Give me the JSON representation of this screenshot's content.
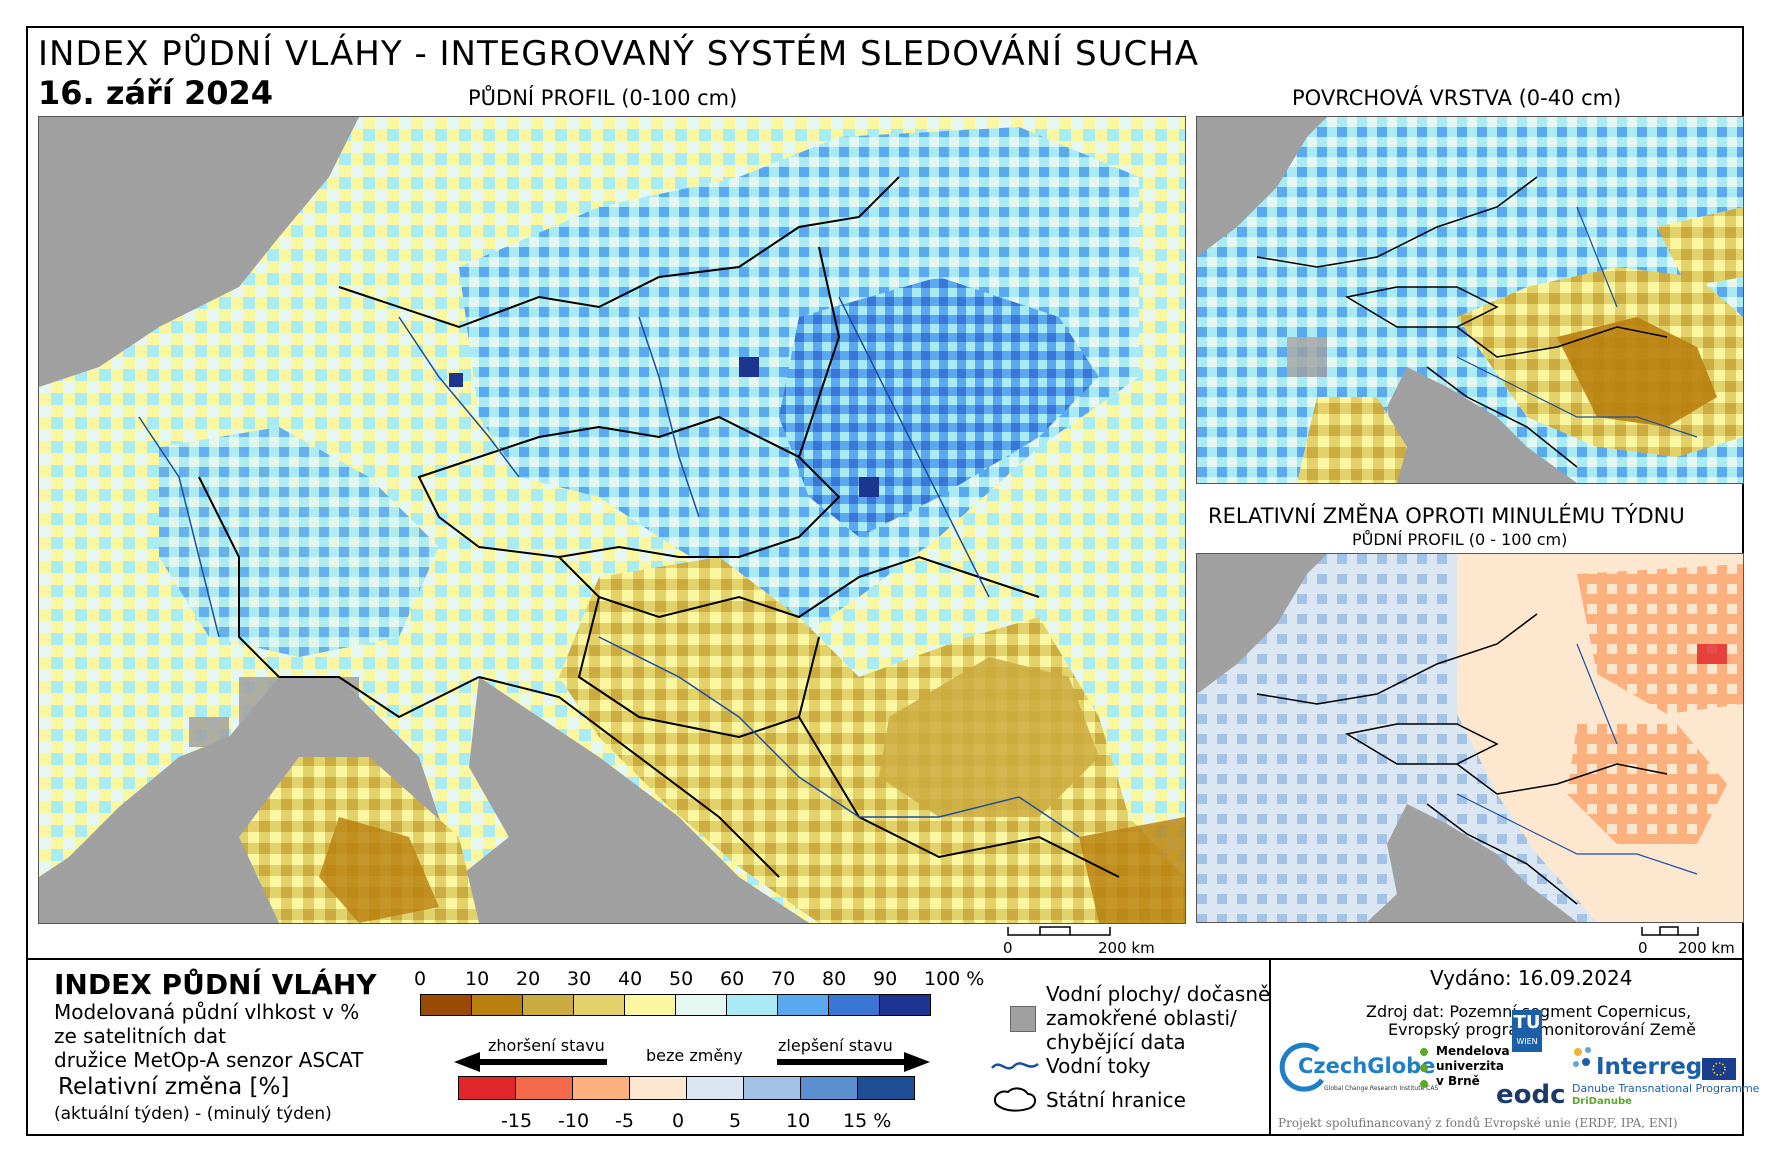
{
  "header": {
    "title": "INDEX PŮDNÍ VLÁHY - INTEGROVANÝ SYSTÉM SLEDOVÁNÍ SUCHA",
    "date": "16. září 2024"
  },
  "maps": {
    "main_caption": "PŮDNÍ PROFIL (0-100 cm)",
    "surface_caption": "POVRCHOVÁ VRSTVA (0-40 cm)",
    "change_caption": "RELATIVNÍ ZMĚNA OPROTI MINULÉMU TÝDNU",
    "change_subcaption": "PŮDNÍ PROFIL (0 - 100 cm)",
    "scale_zero": "0",
    "scale_label": "200 km"
  },
  "legend": {
    "title": "INDEX PŮDNÍ VLÁHY",
    "desc_line1": "Modelovaná půdní vlhkost v %",
    "desc_line2": "ze satelitních dat",
    "desc_line3": "družice MetOp-A senzor ASCAT",
    "change_title": "Relativní změna [%]",
    "change_desc": "(aktuální týden) - (minulý týden)",
    "index_ticks": [
      "0",
      "10",
      "20",
      "30",
      "40",
      "50",
      "60",
      "70",
      "80",
      "90",
      "100 %"
    ],
    "index_colors": [
      "#9a4a02",
      "#b8800e",
      "#ccac40",
      "#e3d26a",
      "#fbf6a0",
      "#e4f7f0",
      "#a9ebf5",
      "#5aa8f0",
      "#3a76d6",
      "#1b3591"
    ],
    "worse_label": "zhoršení stavu",
    "nochange_label": "beze změny",
    "better_label": "zlepšení stavu",
    "change_ticks": [
      "-15",
      "-10",
      "-5",
      "0",
      "5",
      "10",
      "15 %"
    ],
    "change_colors": [
      "#e0262b",
      "#f26a4a",
      "#fcb07d",
      "#fde7cf",
      "#dae6f2",
      "#a3c3e6",
      "#5b8fd0",
      "#1f4e96"
    ],
    "water_label_1": "Vodní plochy/ dočasně",
    "water_label_2": "zamokřené oblasti/",
    "water_label_3": "chybějící data",
    "rivers_label": "Vodní toky",
    "borders_label": "Státní hranice"
  },
  "info": {
    "issued": "Vydáno: 16.09.2024",
    "source_1": "Zdroj dat: Pozemní segment Copernicus,",
    "source_2": "Evropský program monitorování Země",
    "footer": "Projekt spolufinancovaný z fondů Evropské unie (ERDF, IPA, ENI)"
  },
  "logos": {
    "czechglobe": "CzechGlobe",
    "czechglobe_sub": "Global Change Research Institute CAS",
    "mendel_1": "Mendelova",
    "mendel_2": "univerzita",
    "mendel_3": "v Brně",
    "tu_1": "TU",
    "tu_2": "WIEN",
    "eodc": "eodc",
    "interreg": "Interreg",
    "interreg_sub1": "Danube Transnational Programme",
    "interreg_sub2": "DriDanube"
  }
}
